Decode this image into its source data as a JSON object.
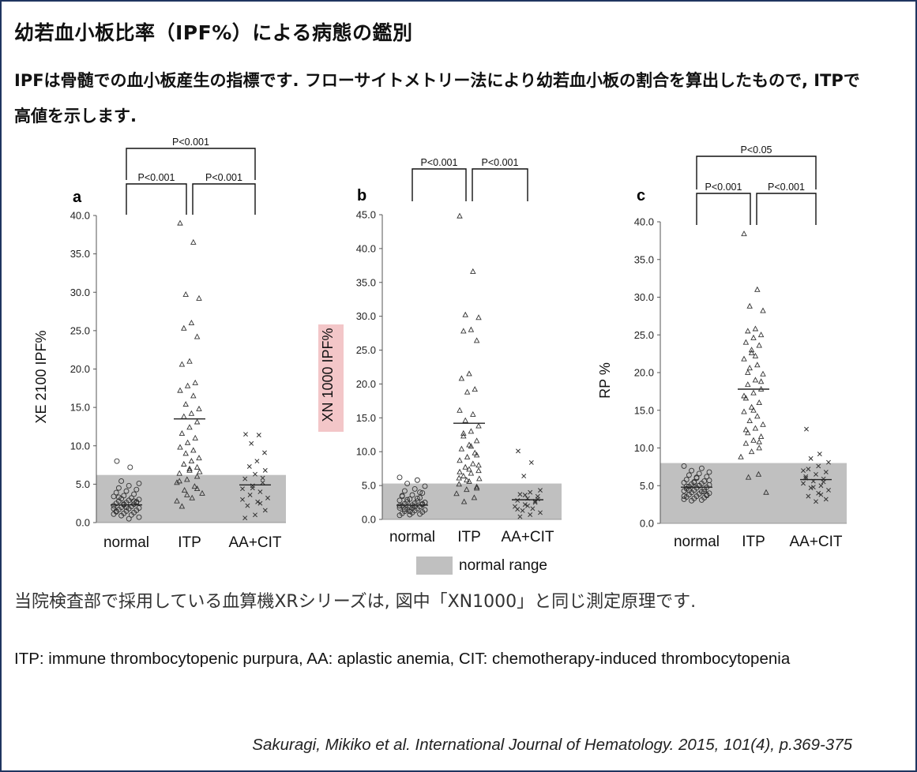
{
  "title": "幼若血小板比率（IPF%）による病態の鑑別",
  "description": "IPFは骨髄での血小板産生の指標です. フローサイトメトリー法により幼若血小板の割合を算出したもので, ITPで高値を示します.",
  "xr_note": "当院検査部で採用している血算機XRシリーズは, 図中「XN1000」と同じ測定原理です.",
  "abbreviations": "ITP: immune thrombocytopenic purpura, AA: aplastic anemia, CIT: chemotherapy-induced thrombocytopenia",
  "citation": "Sakuragi, Mikiko et al. International Journal of Hematology. 2015, 101(4), p.369-375",
  "legend_label": "normal range",
  "colors": {
    "normal_range": "#c0c0c0",
    "highlight": "#f3c6c8",
    "border": "#1f3560"
  },
  "chart_data": [
    {
      "type": "scatter",
      "panel": "a",
      "ylabel": "XE 2100  IPF%",
      "ylim": [
        0,
        40
      ],
      "yticks": [
        "0.0",
        "5.0",
        "10.0",
        "15.0",
        "20.0",
        "25.0",
        "30.0",
        "35.0",
        "40.0"
      ],
      "categories": [
        "normal",
        "ITP",
        "AA+CIT"
      ],
      "normal_range": [
        0,
        6.2
      ],
      "medians": [
        2.3,
        13.5,
        4.9
      ],
      "comparisons": [
        {
          "from": 0,
          "to": 1,
          "label": "P<0.001"
        },
        {
          "from": 1,
          "to": 2,
          "label": "P<0.001"
        },
        {
          "from": 0,
          "to": 2,
          "label": "P<0.001"
        }
      ],
      "series": [
        {
          "name": "normal",
          "marker": "circle",
          "values": [
            8.0,
            7.2,
            5.4,
            5.1,
            4.8,
            4.5,
            4.3,
            4.1,
            3.9,
            3.7,
            3.5,
            3.4,
            3.2,
            3.1,
            3.0,
            2.9,
            2.8,
            2.7,
            2.6,
            2.5,
            2.4,
            2.3,
            2.2,
            2.1,
            2.0,
            1.9,
            1.8,
            1.7,
            1.6,
            1.5,
            1.4,
            1.3,
            1.2,
            1.1,
            1.0,
            0.9,
            0.7,
            0.5,
            3.3,
            2.6,
            2.0,
            1.5,
            2.8,
            2.4,
            1.8
          ]
        },
        {
          "name": "ITP",
          "marker": "triangle",
          "values": [
            39.0,
            36.5,
            29.7,
            29.2,
            26.0,
            25.3,
            24.2,
            21.0,
            20.6,
            18.2,
            17.8,
            17.2,
            16.5,
            15.4,
            14.8,
            14.2,
            13.8,
            13.1,
            12.4,
            11.6,
            11.0,
            10.4,
            9.8,
            9.4,
            9.0,
            8.4,
            8.0,
            7.6,
            7.2,
            6.8,
            6.4,
            6.0,
            5.6,
            5.2,
            4.7,
            4.2,
            3.8,
            3.2,
            2.1,
            6.6,
            7.0,
            5.4,
            4.4,
            3.6,
            2.8
          ]
        },
        {
          "name": "AA+CIT",
          "marker": "x",
          "values": [
            11.5,
            11.4,
            10.3,
            9.1,
            8.0,
            7.3,
            6.8,
            6.3,
            5.7,
            5.2,
            4.8,
            4.4,
            4.0,
            3.6,
            3.2,
            2.7,
            2.2,
            1.6,
            1.0,
            0.6,
            5.8,
            4.5,
            3.0,
            2.5
          ]
        }
      ]
    },
    {
      "type": "scatter",
      "panel": "b",
      "ylabel": "XN 1000  IPF%",
      "ylim": [
        0,
        45
      ],
      "yticks": [
        "0.0",
        "5.0",
        "10.0",
        "15.0",
        "20.0",
        "25.0",
        "30.0",
        "35.0",
        "40.0",
        "45.0"
      ],
      "categories": [
        "normal",
        "ITP",
        "AA+CIT"
      ],
      "normal_range": [
        0,
        5.3
      ],
      "medians": [
        2.1,
        14.2,
        2.9
      ],
      "comparisons": [
        {
          "from": 0,
          "to": 1,
          "label": "P<0.001"
        },
        {
          "from": 1,
          "to": 2,
          "label": "P<0.001"
        }
      ],
      "series": [
        {
          "name": "normal",
          "marker": "circle",
          "values": [
            6.2,
            5.8,
            5.3,
            4.9,
            4.5,
            4.2,
            3.9,
            3.6,
            3.4,
            3.2,
            3.0,
            2.8,
            2.7,
            2.6,
            2.5,
            2.4,
            2.3,
            2.2,
            2.1,
            2.0,
            1.9,
            1.8,
            1.7,
            1.6,
            1.5,
            1.4,
            1.3,
            1.2,
            1.1,
            1.0,
            0.9,
            0.8,
            0.7,
            0.6,
            3.1,
            2.9,
            2.5,
            1.9,
            1.5,
            2.3,
            1.7,
            3.5,
            4.0,
            1.2,
            2.0
          ]
        },
        {
          "name": "ITP",
          "marker": "triangle",
          "values": [
            44.8,
            36.6,
            30.2,
            29.8,
            28.0,
            27.8,
            26.4,
            21.5,
            20.8,
            19.2,
            18.8,
            16.1,
            15.5,
            14.6,
            13.8,
            13.0,
            12.3,
            11.6,
            11.0,
            10.4,
            9.8,
            9.2,
            8.7,
            8.2,
            7.7,
            7.2,
            6.8,
            6.4,
            6.0,
            5.6,
            5.2,
            4.8,
            4.4,
            3.8,
            3.2,
            2.6,
            8.0,
            10.8,
            12.7,
            9.5,
            7.4,
            6.1,
            4.6,
            5.8,
            7.0
          ]
        },
        {
          "name": "AA+CIT",
          "marker": "x",
          "values": [
            10.1,
            8.4,
            6.4,
            4.3,
            4.0,
            3.7,
            3.4,
            3.1,
            2.8,
            2.5,
            2.2,
            1.9,
            1.6,
            1.3,
            1.0,
            0.7,
            0.4,
            3.0,
            2.0,
            1.5,
            2.7,
            3.6
          ]
        }
      ]
    },
    {
      "type": "scatter",
      "panel": "c",
      "ylabel": "RP %",
      "ylim": [
        0,
        40
      ],
      "yticks": [
        "0.0",
        "5.0",
        "10.0",
        "15.0",
        "20.0",
        "25.0",
        "30.0",
        "35.0",
        "40.0"
      ],
      "categories": [
        "normal",
        "ITP",
        "AA+CIT"
      ],
      "normal_range": [
        0,
        8.0
      ],
      "medians": [
        4.8,
        17.8,
        5.8
      ],
      "comparisons": [
        {
          "from": 0,
          "to": 1,
          "label": "P<0.001"
        },
        {
          "from": 1,
          "to": 2,
          "label": "P<0.001"
        },
        {
          "from": 0,
          "to": 2,
          "label": "P<0.05"
        }
      ],
      "series": [
        {
          "name": "normal",
          "marker": "circle",
          "values": [
            7.6,
            7.3,
            7.0,
            6.8,
            6.6,
            6.4,
            6.2,
            6.0,
            5.8,
            5.6,
            5.5,
            5.4,
            5.3,
            5.2,
            5.1,
            5.0,
            4.9,
            4.8,
            4.7,
            4.6,
            4.5,
            4.4,
            4.3,
            4.2,
            4.1,
            4.0,
            3.9,
            3.8,
            3.7,
            3.6,
            3.5,
            3.4,
            3.3,
            3.2,
            3.1,
            3.0,
            5.7,
            5.0,
            4.4,
            3.8,
            6.1,
            4.9,
            4.2,
            5.4,
            3.6
          ]
        },
        {
          "name": "ITP",
          "marker": "triangle",
          "values": [
            38.4,
            31.0,
            28.8,
            28.2,
            25.8,
            25.5,
            25.0,
            24.6,
            24.0,
            23.6,
            22.6,
            21.8,
            21.0,
            20.6,
            19.8,
            19.0,
            18.4,
            17.8,
            17.3,
            16.6,
            16.0,
            15.4,
            14.8,
            14.2,
            13.6,
            13.1,
            12.6,
            12.0,
            11.5,
            11.0,
            10.6,
            10.0,
            9.5,
            8.8,
            6.5,
            6.1,
            4.1,
            22.2,
            20.0,
            18.8,
            15.0,
            12.4,
            10.8,
            23.0,
            16.9
          ]
        },
        {
          "name": "AA+CIT",
          "marker": "x",
          "values": [
            12.5,
            9.2,
            8.6,
            8.1,
            7.6,
            7.2,
            6.8,
            6.5,
            6.2,
            5.9,
            5.6,
            5.3,
            5.0,
            4.7,
            4.4,
            4.0,
            3.6,
            3.2,
            2.9,
            6.0,
            5.5,
            4.8,
            7.0,
            3.8
          ]
        }
      ]
    }
  ]
}
